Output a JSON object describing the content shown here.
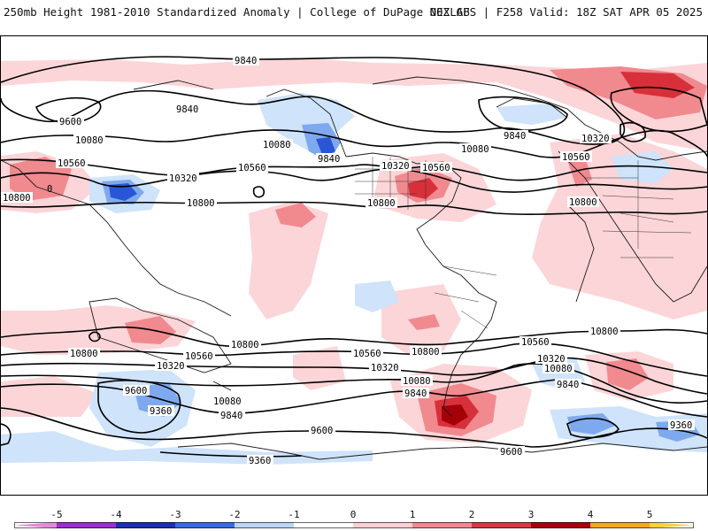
{
  "header": {
    "title_left": "250mb Height 1981-2010 Standardized Anomaly | College of DuPage NEXLAB",
    "title_right": "00Z GFS | F258 Valid: 18Z SAT APR 05 2025"
  },
  "map": {
    "contour_labels": [
      "9840",
      "9600",
      "9840",
      "10080",
      "10560",
      "10800",
      "10080",
      "10320",
      "9840",
      "10560",
      "10320",
      "10560",
      "10800",
      "10800",
      "10080",
      "9840",
      "10320",
      "10560",
      "10800",
      "10800",
      "10560",
      "10320",
      "10080",
      "9840",
      "9600",
      "9360",
      "10800",
      "9360",
      "9600",
      "10560",
      "10320",
      "10080",
      "9840",
      "10800",
      "10560",
      "10320",
      "10080",
      "9840",
      "9600",
      "9360",
      "0"
    ],
    "colors": {
      "contour": "#000000",
      "coast": "#1a1a1a",
      "pos1": "#fcd5d8",
      "pos2": "#f08a8f",
      "pos3": "#d8303a",
      "pos4": "#a30008",
      "neg1": "#cfe3fa",
      "neg2": "#7fa9ee",
      "neg3": "#2a56d6"
    }
  },
  "colorbar": {
    "tick_labels": [
      "-5",
      "-4",
      "-3",
      "-2",
      "-1",
      "0",
      "1",
      "2",
      "3",
      "4",
      "5"
    ],
    "colors": [
      "#e58ad8",
      "#9b2fd0",
      "#1c2fb0",
      "#3a6be0",
      "#bcd6f6",
      "#ffffff",
      "#fcd0d4",
      "#f08890",
      "#d63a44",
      "#a80010",
      "#f5a623",
      "#f7d23e"
    ]
  }
}
